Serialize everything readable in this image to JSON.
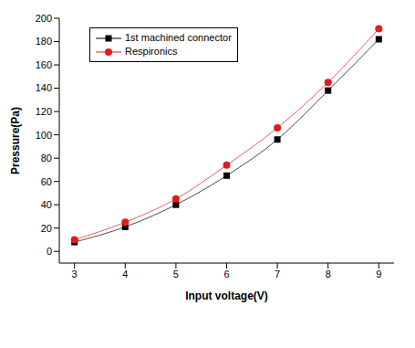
{
  "chart_data": {
    "type": "line",
    "x_label": "Input voltage(V)",
    "y_label": "Pressure(Pa)",
    "x": [
      3,
      4,
      5,
      6,
      7,
      8,
      9
    ],
    "series": [
      {
        "name": "1st machined connector",
        "color": "#000000",
        "marker": "square",
        "values": [
          8,
          21,
          40,
          65,
          96,
          138,
          182
        ]
      },
      {
        "name": "Respironics",
        "color": "#e41a1c",
        "marker": "circle",
        "values": [
          10,
          25,
          45,
          74,
          106,
          145,
          191
        ]
      }
    ],
    "xlim": [
      2.7,
      9.3
    ],
    "xticks": [
      3,
      4,
      5,
      6,
      7,
      8,
      9
    ],
    "ylim": [
      -10,
      200
    ],
    "yticks": [
      0,
      20,
      40,
      60,
      80,
      100,
      120,
      140,
      160,
      180,
      200
    ],
    "grid": false,
    "legend": "upper left"
  }
}
